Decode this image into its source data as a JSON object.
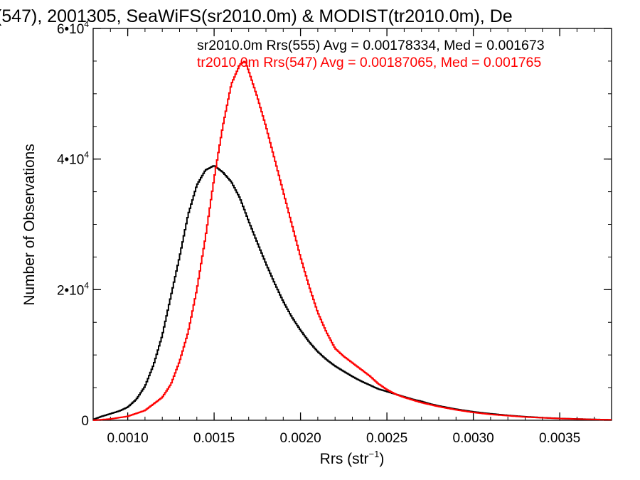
{
  "chart_data": {
    "type": "line",
    "title": "(547), 2001305, SeaWiFS(sr2010.0m) & MODIST(tr2010.0m), De",
    "xlabel": "Rrs (str",
    "xlabel_sup": "−1",
    "xlabel_close": ")",
    "ylabel": "Number of Observations",
    "xlim": [
      0.0008,
      0.0038
    ],
    "ylim": [
      0,
      60000
    ],
    "x_ticks": [
      {
        "value": 0.001,
        "label": "0.0010"
      },
      {
        "value": 0.0015,
        "label": "0.0015"
      },
      {
        "value": 0.002,
        "label": "0.0020"
      },
      {
        "value": 0.0025,
        "label": "0.0025"
      },
      {
        "value": 0.003,
        "label": "0.0030"
      },
      {
        "value": 0.0035,
        "label": "0.0035"
      }
    ],
    "y_ticks": [
      {
        "value": 0,
        "label": "0",
        "exp": ""
      },
      {
        "value": 20000,
        "label": "2•10",
        "exp": "4"
      },
      {
        "value": 40000,
        "label": "4•10",
        "exp": "4"
      },
      {
        "value": 60000,
        "label": "6•10",
        "exp": "4"
      }
    ],
    "grid": false,
    "legend_position": "top-right",
    "series": [
      {
        "name": "sr2010.0m Rrs(555)",
        "annotation": "sr2010.0m Rrs(555) Avg = 0.00178334, Med = 0.001673",
        "color": "#000000",
        "points": [
          [
            0.0008,
            100
          ],
          [
            0.00085,
            600
          ],
          [
            0.0009,
            1000
          ],
          [
            0.00095,
            1400
          ],
          [
            0.001,
            2000
          ],
          [
            0.00105,
            3200
          ],
          [
            0.0011,
            5200
          ],
          [
            0.00115,
            8500
          ],
          [
            0.0012,
            13000
          ],
          [
            0.00125,
            19000
          ],
          [
            0.0013,
            25000
          ],
          [
            0.00135,
            31500
          ],
          [
            0.0014,
            36000
          ],
          [
            0.00145,
            38300
          ],
          [
            0.0015,
            39000
          ],
          [
            0.00155,
            38000
          ],
          [
            0.0016,
            36500
          ],
          [
            0.00165,
            34000
          ],
          [
            0.0017,
            30500
          ],
          [
            0.00175,
            27200
          ],
          [
            0.0018,
            24000
          ],
          [
            0.00185,
            21000
          ],
          [
            0.0019,
            18200
          ],
          [
            0.00195,
            15800
          ],
          [
            0.002,
            13800
          ],
          [
            0.00205,
            12000
          ],
          [
            0.0021,
            10500
          ],
          [
            0.00215,
            9300
          ],
          [
            0.0022,
            8300
          ],
          [
            0.00225,
            7500
          ],
          [
            0.0023,
            6700
          ],
          [
            0.00235,
            6000
          ],
          [
            0.0024,
            5400
          ],
          [
            0.00245,
            4800
          ],
          [
            0.0025,
            4400
          ],
          [
            0.00255,
            4000
          ],
          [
            0.0026,
            3600
          ],
          [
            0.00265,
            3200
          ],
          [
            0.0027,
            2900
          ],
          [
            0.00275,
            2500
          ],
          [
            0.0028,
            2200
          ],
          [
            0.0029,
            1700
          ],
          [
            0.003,
            1300
          ],
          [
            0.0031,
            1000
          ],
          [
            0.0032,
            750
          ],
          [
            0.0033,
            550
          ],
          [
            0.0034,
            400
          ],
          [
            0.0035,
            280
          ],
          [
            0.0036,
            200
          ],
          [
            0.0037,
            130
          ],
          [
            0.0038,
            80
          ]
        ]
      },
      {
        "name": "tr2010.0m Rrs(547)",
        "annotation": "tr2010.0m Rrs(547) Avg = 0.00187065, Med = 0.001765",
        "color": "#ff0000",
        "points": [
          [
            0.0008,
            0
          ],
          [
            0.0009,
            200
          ],
          [
            0.001,
            600
          ],
          [
            0.0011,
            1500
          ],
          [
            0.00115,
            2500
          ],
          [
            0.0012,
            3500
          ],
          [
            0.00125,
            5500
          ],
          [
            0.0013,
            9000
          ],
          [
            0.00135,
            13500
          ],
          [
            0.0014,
            20000
          ],
          [
            0.00145,
            28000
          ],
          [
            0.0015,
            37000
          ],
          [
            0.00155,
            45000
          ],
          [
            0.0016,
            51500
          ],
          [
            0.00165,
            54500
          ],
          [
            0.00168,
            55000
          ],
          [
            0.0017,
            53500
          ],
          [
            0.00175,
            49500
          ],
          [
            0.0018,
            45000
          ],
          [
            0.00185,
            40000
          ],
          [
            0.0019,
            35000
          ],
          [
            0.00195,
            30000
          ],
          [
            0.002,
            25000
          ],
          [
            0.00205,
            20500
          ],
          [
            0.0021,
            16500
          ],
          [
            0.00215,
            13500
          ],
          [
            0.0022,
            11000
          ],
          [
            0.00225,
            9800
          ],
          [
            0.0023,
            8800
          ],
          [
            0.00235,
            7800
          ],
          [
            0.0024,
            6800
          ],
          [
            0.00245,
            5600
          ],
          [
            0.0025,
            4700
          ],
          [
            0.00255,
            4000
          ],
          [
            0.0026,
            3500
          ],
          [
            0.0027,
            2700
          ],
          [
            0.0028,
            2100
          ],
          [
            0.0029,
            1600
          ],
          [
            0.003,
            1200
          ],
          [
            0.0031,
            900
          ],
          [
            0.0032,
            700
          ],
          [
            0.0033,
            500
          ],
          [
            0.0034,
            380
          ],
          [
            0.0035,
            270
          ],
          [
            0.0036,
            190
          ],
          [
            0.0037,
            120
          ],
          [
            0.0038,
            70
          ]
        ]
      }
    ]
  }
}
